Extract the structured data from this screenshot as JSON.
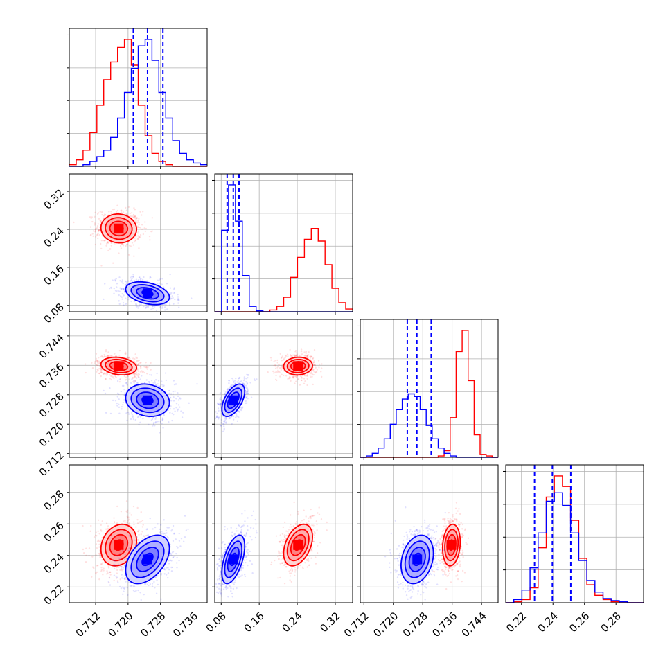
{
  "colors": {
    "series_a": "#ff0000",
    "series_b": "#0000ff",
    "grid": "#b0b0b0",
    "frame": "#000000"
  },
  "chart_data": {
    "type": "corner",
    "grid": true,
    "parameters": [
      {
        "range": [
          0.7055,
          0.7395
        ],
        "ticks": [
          "0.712",
          "0.720",
          "0.728",
          "0.736"
        ]
      },
      {
        "range": [
          0.0665,
          0.3565
        ],
        "ticks": [
          "0.08",
          "0.16",
          "0.24",
          "0.32"
        ]
      },
      {
        "range": [
          0.711,
          0.7485
        ],
        "ticks": [
          "0.712",
          "0.720",
          "0.728",
          "0.736",
          "0.744"
        ]
      },
      {
        "range": [
          0.21,
          0.2975
        ],
        "ticks": [
          "0.22",
          "0.24",
          "0.26",
          "0.28"
        ]
      }
    ],
    "series": [
      {
        "color": "red",
        "mean": [
          0.7177,
          0.2417,
          0.7358,
          0.2466
        ],
        "std": [
          0.0022,
          0.0152,
          0.0012,
          0.0066
        ]
      },
      {
        "color": "blue",
        "mean": [
          0.7248,
          0.1055,
          0.7265,
          0.2375
        ],
        "std": [
          0.0027,
          0.012,
          0.0022,
          0.0077
        ]
      }
    ],
    "quantile_lines": [
      [
        0.7213,
        0.7248,
        0.7286
      ],
      [
        0.0925,
        0.1055,
        0.1175
      ],
      [
        0.7238,
        0.7264,
        0.7303
      ],
      [
        0.2283,
        0.2396,
        0.2513
      ]
    ],
    "histograms": [
      {
        "edges": [
          0.7055,
          0.7395
        ],
        "red": [
          1,
          4,
          10,
          21,
          38,
          54,
          65,
          74,
          79,
          63,
          38,
          19,
          8,
          3,
          1,
          0,
          0,
          0,
          0,
          0
        ],
        "blue": [
          0,
          0,
          1,
          3,
          6,
          10,
          18,
          30,
          46,
          61,
          75,
          79,
          66,
          46,
          30,
          16,
          8,
          4,
          2,
          1
        ]
      },
      {
        "edges": [
          0.0665,
          0.3565
        ],
        "red": [
          0,
          0,
          0,
          0,
          0,
          0,
          0,
          0,
          2,
          6,
          16,
          38,
          60,
          80,
          92,
          78,
          52,
          26,
          10,
          3
        ],
        "blue": [
          0,
          90,
          140,
          100,
          40,
          6,
          1,
          0,
          0,
          0,
          0,
          0,
          0,
          0,
          0,
          0,
          0,
          0,
          0,
          0
        ]
      },
      {
        "edges": [
          0.711,
          0.7485
        ],
        "red": [
          0,
          0,
          0,
          0,
          0,
          0,
          0,
          0,
          0,
          0,
          0,
          0,
          0,
          1,
          5,
          30,
          80,
          96,
          58,
          17,
          2,
          1,
          0
        ],
        "blue": [
          0,
          1,
          3,
          7,
          14,
          25,
          36,
          44,
          48,
          46,
          36,
          24,
          14,
          7,
          3,
          1,
          0,
          0,
          0,
          0,
          0,
          0,
          0
        ]
      },
      {
        "edges": [
          0.21,
          0.2975
        ],
        "red": [
          0,
          1,
          3,
          14,
          52,
          100,
          120,
          110,
          78,
          42,
          17,
          7,
          3,
          1,
          0,
          0,
          0
        ],
        "blue": [
          0,
          3,
          12,
          33,
          66,
          96,
          104,
          92,
          66,
          40,
          21,
          10,
          4,
          2,
          1,
          0,
          0
        ]
      }
    ]
  }
}
